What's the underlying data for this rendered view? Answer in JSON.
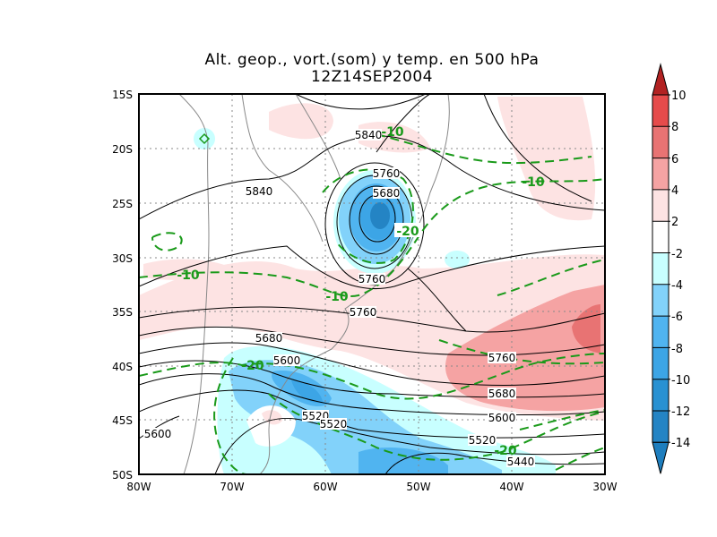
{
  "title": {
    "line1": "Alt. geop., vort.(som) y temp. en 500 hPa",
    "line2": "12Z14SEP2004"
  },
  "axes": {
    "lat_labels": [
      "15S",
      "20S",
      "25S",
      "30S",
      "35S",
      "40S",
      "45S",
      "50S"
    ],
    "lon_labels": [
      "80W",
      "70W",
      "60W",
      "50W",
      "40W",
      "30W"
    ]
  },
  "colorbar": {
    "levels": [
      "10",
      "8",
      "6",
      "4",
      "2",
      "-2",
      "-4",
      "-6",
      "-8",
      "-10",
      "-12",
      "-14"
    ],
    "colors": [
      "#b22222",
      "#e64b4b",
      "#e87373",
      "#f5a3a3",
      "#fde3e3",
      "#ffffff",
      "#c8ffff",
      "#82d2fa",
      "#50b4f0",
      "#3ca5e6",
      "#2891d2",
      "#2484c4",
      "#1e7ebe"
    ]
  },
  "height_labels": [
    "5840",
    "5760",
    "5680",
    "5840",
    "5760",
    "5760",
    "5680",
    "5600",
    "5760",
    "5680",
    "5520",
    "5520",
    "5600",
    "5520",
    "5440",
    "5600"
  ],
  "temp_labels": [
    "-10",
    "-20",
    "-10",
    "-10",
    "-10",
    "-20",
    "-20"
  ]
}
